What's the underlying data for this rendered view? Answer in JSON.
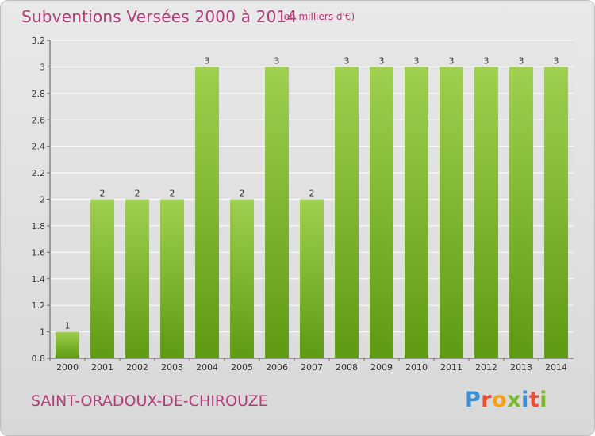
{
  "header": {
    "title": "Subventions Versées 2000 à 2014",
    "subtitle": "(en milliers d'€)"
  },
  "footer": {
    "commune": "SAINT-ORADOUX-DE-CHIROUZE",
    "logo_text": "Proxiti",
    "logo_colors": [
      "#3a8fd6",
      "#e8503a",
      "#f3a21b",
      "#7ab733",
      "#3a8fd6",
      "#e8503a",
      "#7ab733"
    ]
  },
  "colors": {
    "title": "#b23a78",
    "bar_top": "#9fd04f",
    "bar_bottom": "#5e9a12",
    "grid": "#ffffff",
    "background": "#e3e3e3"
  },
  "chart_data": {
    "type": "bar",
    "categories": [
      "2000",
      "2001",
      "2002",
      "2003",
      "2004",
      "2005",
      "2006",
      "2007",
      "2008",
      "2009",
      "2010",
      "2011",
      "2012",
      "2013",
      "2014"
    ],
    "values": [
      1,
      2,
      2,
      2,
      3,
      2,
      3,
      2,
      3,
      3,
      3,
      3,
      3,
      3,
      3
    ],
    "data_labels": [
      "1",
      "2",
      "2",
      "2",
      "3",
      "2",
      "3",
      "2",
      "3",
      "3",
      "3",
      "3",
      "3",
      "3",
      "3"
    ],
    "bar_positions": [
      1,
      2,
      2,
      2,
      3,
      2,
      3,
      2,
      3,
      3,
      3,
      3,
      3,
      3,
      3
    ],
    "y_ticks": [
      0.8,
      1,
      1.2,
      1.4,
      1.6,
      1.8,
      2,
      2.2,
      2.4,
      2.6,
      2.8,
      3,
      3.2
    ],
    "y_tick_labels": [
      "0.8",
      "1",
      "1.2",
      "1.4",
      "1.6",
      "1.8",
      "2",
      "2.2",
      "2.4",
      "2.6",
      "2.8",
      "3",
      "3.2"
    ],
    "ylim": [
      0.8,
      3.2
    ],
    "grid": true,
    "xlabel": "",
    "ylabel": ""
  }
}
